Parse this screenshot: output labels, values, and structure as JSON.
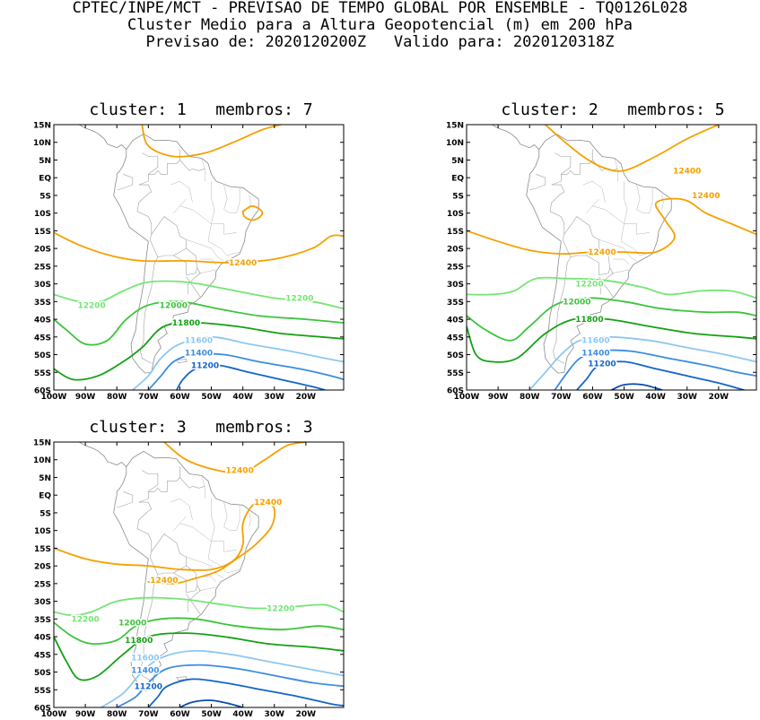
{
  "header": {
    "line1": "CPTEC/INPE/MCT - PREVISAO DE TEMPO GLOBAL POR ENSEMBLE - TQ0126L028",
    "line2": "Cluster Medio para a Altura Geopotencial (m) em 200 hPa",
    "line3": "Previsao de: 2020120200Z   Valido para: 2020120318Z"
  },
  "axes": {
    "lat_labels": [
      "15N",
      "10N",
      "5N",
      "EQ",
      "5S",
      "10S",
      "15S",
      "20S",
      "25S",
      "30S",
      "35S",
      "40S",
      "45S",
      "50S",
      "55S",
      "60S"
    ],
    "lon_labels": [
      "100W",
      "90W",
      "80W",
      "70W",
      "60W",
      "50W",
      "40W",
      "30W",
      "20W"
    ]
  },
  "colors": {
    "12400": "#f5a000",
    "12200": "#73e673",
    "12000": "#3cc43c",
    "11800": "#14a014",
    "11600": "#8cc8f0",
    "11400": "#3c8ce0",
    "11200": "#1464c8"
  },
  "panels": [
    {
      "title": "cluster: 1   membros: 7",
      "labels": [
        {
          "text": "12400",
          "lon": -40,
          "lat": -24,
          "level": "12400"
        },
        {
          "text": "12200",
          "lon": -88,
          "lat": -36,
          "level": "12200"
        },
        {
          "text": "12200",
          "lon": -22,
          "lat": -34,
          "level": "12200"
        },
        {
          "text": "12000",
          "lon": -62,
          "lat": -36,
          "level": "12000"
        },
        {
          "text": "11800",
          "lon": -58,
          "lat": -41,
          "level": "11800"
        },
        {
          "text": "11600",
          "lon": -54,
          "lat": -46,
          "level": "11600"
        },
        {
          "text": "11400",
          "lon": -54,
          "lat": -49.5,
          "level": "11400"
        },
        {
          "text": "11200",
          "lon": -52,
          "lat": -53,
          "level": "11200"
        }
      ]
    },
    {
      "title": "cluster: 2   membros: 5",
      "labels": [
        {
          "text": "12400",
          "lon": -30,
          "lat": 2,
          "level": "12400"
        },
        {
          "text": "12400",
          "lon": -24,
          "lat": -5,
          "level": "12400"
        },
        {
          "text": "12400",
          "lon": -57,
          "lat": -21,
          "level": "12400"
        },
        {
          "text": "12200",
          "lon": -61,
          "lat": -30,
          "level": "12200"
        },
        {
          "text": "12000",
          "lon": -65,
          "lat": -35,
          "level": "12000"
        },
        {
          "text": "11800",
          "lon": -61,
          "lat": -40,
          "level": "11800"
        },
        {
          "text": "11600",
          "lon": -59,
          "lat": -46,
          "level": "11600"
        },
        {
          "text": "11400",
          "lon": -59,
          "lat": -49.5,
          "level": "11400"
        },
        {
          "text": "11200",
          "lon": -57,
          "lat": -52.5,
          "level": "11200"
        }
      ]
    },
    {
      "title": "cluster: 3   membros: 3",
      "labels": [
        {
          "text": "12400",
          "lon": -41,
          "lat": 7,
          "level": "12400"
        },
        {
          "text": "12400",
          "lon": -32,
          "lat": -2,
          "level": "12400"
        },
        {
          "text": "12400",
          "lon": -65,
          "lat": -24,
          "level": "12400"
        },
        {
          "text": "12200",
          "lon": -90,
          "lat": -35,
          "level": "12200"
        },
        {
          "text": "12200",
          "lon": -28,
          "lat": -32,
          "level": "12200"
        },
        {
          "text": "12000",
          "lon": -75,
          "lat": -36,
          "level": "12000"
        },
        {
          "text": "11800",
          "lon": -73,
          "lat": -41,
          "level": "11800"
        },
        {
          "text": "11600",
          "lon": -71,
          "lat": -46,
          "level": "11600"
        },
        {
          "text": "11400",
          "lon": -71,
          "lat": -49.5,
          "level": "11400"
        },
        {
          "text": "11200",
          "lon": -70,
          "lat": -54,
          "level": "11200"
        }
      ]
    }
  ]
}
